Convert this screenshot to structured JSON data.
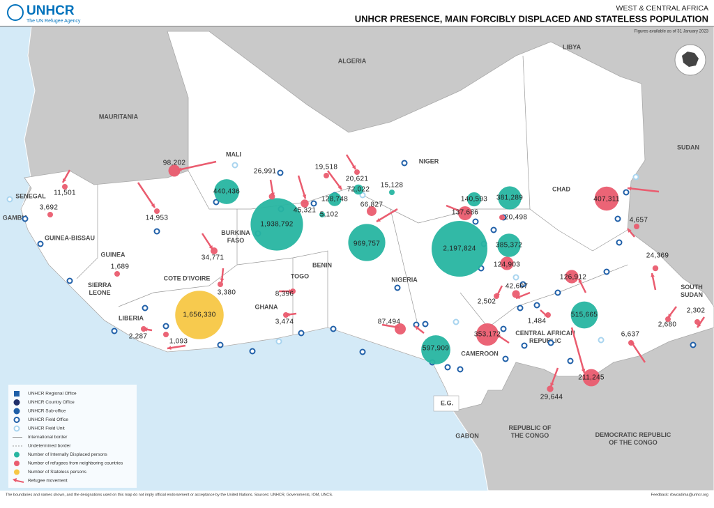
{
  "header": {
    "logo": "UNHCR",
    "tagline": "The UN Refugee Agency",
    "region": "WEST & CENTRAL AFRICA",
    "title": "UNHCR PRESENCE, MAIN FORCIBLY DISPLACED AND STATELESS POPULATION",
    "date_note": "Figures available as of 31 January 2023"
  },
  "colors": {
    "idp": "#27b5a1",
    "refugee": "#ea5c6f",
    "stateless": "#f7c744"
  },
  "countries": [
    [
      "ALGERIA"
    ],
    [
      "LIBYA"
    ],
    [
      "MAURITANIA"
    ],
    [
      "MALI"
    ],
    [
      "NIGER"
    ],
    [
      "CHAD"
    ],
    [
      "SUDAN"
    ],
    [
      "SENEGAL"
    ],
    [
      "GAMBIA"
    ],
    [
      "GUINEA-BISSAU"
    ],
    [
      "GUINEA"
    ],
    [
      "SIERRA",
      "LEONE"
    ],
    [
      "LIBERIA"
    ],
    [
      "COTE D'IVOIRE"
    ],
    [
      "BURKINA",
      "FASO"
    ],
    [
      "GHANA"
    ],
    [
      "TOGO"
    ],
    [
      "BENIN"
    ],
    [
      "NIGERIA"
    ],
    [
      "CAMEROON"
    ],
    [
      "CENTRAL AFRICAN",
      "REPUBLIC"
    ],
    [
      "SOUTH",
      "SUDAN"
    ],
    [
      "E.G."
    ],
    [
      "GABON"
    ],
    [
      "REPUBLIC OF",
      "THE CONGO"
    ],
    [
      "DEMOCRATIC REPUBLIC",
      "OF THE CONGO"
    ]
  ],
  "bubbles": [
    {
      "type": "idp",
      "value": 440436,
      "label": "440,436"
    },
    {
      "type": "idp",
      "value": 1938792,
      "label": "1,938,792"
    },
    {
      "type": "idp",
      "value": 128748,
      "label": "128,748"
    },
    {
      "type": "idp",
      "value": 72022,
      "label": "72,022"
    },
    {
      "type": "idp",
      "value": 15128,
      "label": "15,128"
    },
    {
      "type": "idp",
      "value": 5102,
      "label": "5,102"
    },
    {
      "type": "idp",
      "value": 969757,
      "label": "969,757"
    },
    {
      "type": "idp",
      "value": 2197824,
      "label": "2,197,824"
    },
    {
      "type": "idp",
      "value": 140593,
      "label": "140,593"
    },
    {
      "type": "idp",
      "value": 381289,
      "label": "381,289"
    },
    {
      "type": "idp",
      "value": 385372,
      "label": "385,372"
    },
    {
      "type": "idp",
      "value": 515665,
      "label": "515,665"
    },
    {
      "type": "idp",
      "value": 597909,
      "label": "597,909"
    },
    {
      "type": "stateless",
      "value": 1656330,
      "label": "1,656,330"
    },
    {
      "type": "refugee",
      "value": 98202,
      "label": "98,202"
    },
    {
      "type": "refugee",
      "value": 11501,
      "label": "11,501"
    },
    {
      "type": "refugee",
      "value": 3692,
      "label": "3,692"
    },
    {
      "type": "refugee",
      "value": 14953,
      "label": "14,953"
    },
    {
      "type": "refugee",
      "value": 26991,
      "label": "26,991"
    },
    {
      "type": "refugee",
      "value": 19518,
      "label": "19,518"
    },
    {
      "type": "refugee",
      "value": 20621,
      "label": "20,621"
    },
    {
      "type": "refugee",
      "value": 45321,
      "label": "45,321"
    },
    {
      "type": "refugee",
      "value": 66827,
      "label": "66,827"
    },
    {
      "type": "refugee",
      "value": 137686,
      "label": "137,686"
    },
    {
      "type": "refugee",
      "value": 20498,
      "label": "20,498"
    },
    {
      "type": "refugee",
      "value": 124903,
      "label": "124,903"
    },
    {
      "type": "refugee",
      "value": 407311,
      "label": "407,311"
    },
    {
      "type": "refugee",
      "value": 4657,
      "label": "4,657"
    },
    {
      "type": "refugee",
      "value": 34771,
      "label": "34,771"
    },
    {
      "type": "refugee",
      "value": 3380,
      "label": "3,380"
    },
    {
      "type": "refugee",
      "value": 1689,
      "label": "1,689"
    },
    {
      "type": "refugee",
      "value": 8396,
      "label": "8,396"
    },
    {
      "type": "refugee",
      "value": 3474,
      "label": "3,474"
    },
    {
      "type": "refugee",
      "value": 2287,
      "label": "2,287"
    },
    {
      "type": "refugee",
      "value": 1093,
      "label": "1,093"
    },
    {
      "type": "refugee",
      "value": 87494,
      "label": "87,494"
    },
    {
      "type": "refugee",
      "value": 353172,
      "label": "353,172"
    },
    {
      "type": "refugee",
      "value": 2502,
      "label": "2,502"
    },
    {
      "type": "refugee",
      "value": 42607,
      "label": "42,607"
    },
    {
      "type": "refugee",
      "value": 1484,
      "label": "1,484"
    },
    {
      "type": "refugee",
      "value": 126912,
      "label": "126,912"
    },
    {
      "type": "refugee",
      "value": 24369,
      "label": "24,369"
    },
    {
      "type": "refugee",
      "value": 2680,
      "label": "2,680"
    },
    {
      "type": "refugee",
      "value": 2302,
      "label": "2,302"
    },
    {
      "type": "refugee",
      "value": 6637,
      "label": "6,637"
    },
    {
      "type": "refugee",
      "value": 211245,
      "label": "211,245"
    },
    {
      "type": "refugee",
      "value": 29644,
      "label": "29,644"
    }
  ],
  "legend": [
    "UNHCR Regional Office",
    "UNHCR Country Office",
    "UNHCR Sub-office",
    "UNHCR Field Office",
    "UNHCR Field Unit",
    "International border",
    "Undetermined border",
    "Number of Internally Displaced persons",
    "Number of refugees from neighboring countries",
    "Number of Stateless persons",
    "Refugee movement"
  ],
  "footer": {
    "disclaimer": "The boundaries and names shown, and the designations used on this map do not imply official endorsement or acceptance by the United Nations. Sources: UNHCR, Governments, IOM, UNCS.",
    "feedback": "Feedback: rbwcadima@unhcr.org"
  }
}
